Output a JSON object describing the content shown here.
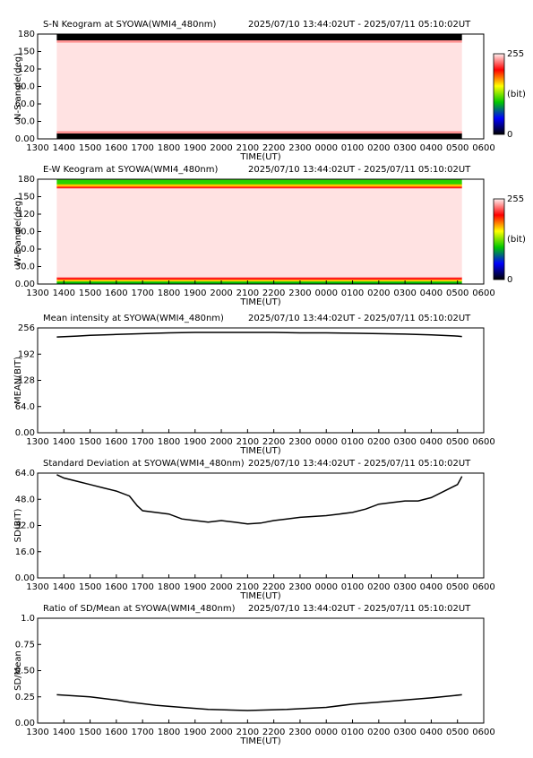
{
  "chart_data": [
    {
      "type": "keogram",
      "title": "S-N Keogram at SYOWA(WMI4_480nm)",
      "subtitle": "2025/07/10 13:44:02UT - 2025/07/11 05:10:02UT",
      "xlabel": "TIME(UT)",
      "ylabel": "N-S angle(deg)",
      "xbins": [
        13.73,
        29.17
      ],
      "ybins": [
        0,
        10,
        14,
        166,
        170,
        180
      ],
      "values": [
        0,
        235,
        252,
        235,
        0
      ],
      "clim": [
        0,
        255
      ],
      "cticks": [
        0,
        255
      ],
      "clabel": "(bit)",
      "xlim": [
        13,
        30
      ],
      "xticks": [
        {
          "value": 13,
          "label": "1300"
        },
        {
          "value": 14,
          "label": "1400"
        },
        {
          "value": 15,
          "label": "1500"
        },
        {
          "value": 16,
          "label": "1600"
        },
        {
          "value": 17,
          "label": "1700"
        },
        {
          "value": 18,
          "label": "1800"
        },
        {
          "value": 19,
          "label": "1900"
        },
        {
          "value": 20,
          "label": "2000"
        },
        {
          "value": 21,
          "label": "2100"
        },
        {
          "value": 22,
          "label": "2200"
        },
        {
          "value": 23,
          "label": "2300"
        },
        {
          "value": 24,
          "label": "0000"
        },
        {
          "value": 25,
          "label": "0100"
        },
        {
          "value": 26,
          "label": "0200"
        },
        {
          "value": 27,
          "label": "0300"
        },
        {
          "value": 28,
          "label": "0400"
        },
        {
          "value": 29,
          "label": "0500"
        },
        {
          "value": 30,
          "label": "0600"
        }
      ],
      "ylim": [
        0,
        180
      ],
      "yticks": [
        {
          "value": 0,
          "label": "0.00"
        },
        {
          "value": 30,
          "label": "30.0"
        },
        {
          "value": 60,
          "label": "60.0"
        },
        {
          "value": 90,
          "label": "90.0"
        },
        120,
        150,
        180
      ]
    },
    {
      "type": "keogram",
      "title": "E-W Keogram at SYOWA(WMI4_480nm)",
      "subtitle": "2025/07/10 13:44:02UT - 2025/07/11 05:10:02UT",
      "xlabel": "TIME(UT)",
      "ylabel": "W-E angle(deg)",
      "xbins": [
        13.73,
        29.17
      ],
      "ybins": [
        0,
        5,
        8,
        12,
        165,
        168,
        172,
        180
      ],
      "values": [
        100,
        160,
        210,
        252,
        210,
        165,
        110
      ],
      "clim": [
        0,
        255
      ],
      "cticks": [
        0,
        255
      ],
      "clabel": "(bit)",
      "xlim": [
        13,
        30
      ],
      "xticks": [
        {
          "value": 13,
          "label": "1300"
        },
        {
          "value": 14,
          "label": "1400"
        },
        {
          "value": 15,
          "label": "1500"
        },
        {
          "value": 16,
          "label": "1600"
        },
        {
          "value": 17,
          "label": "1700"
        },
        {
          "value": 18,
          "label": "1800"
        },
        {
          "value": 19,
          "label": "1900"
        },
        {
          "value": 20,
          "label": "2000"
        },
        {
          "value": 21,
          "label": "2100"
        },
        {
          "value": 22,
          "label": "2200"
        },
        {
          "value": 23,
          "label": "2300"
        },
        {
          "value": 24,
          "label": "0000"
        },
        {
          "value": 25,
          "label": "0100"
        },
        {
          "value": 26,
          "label": "0200"
        },
        {
          "value": 27,
          "label": "0300"
        },
        {
          "value": 28,
          "label": "0400"
        },
        {
          "value": 29,
          "label": "0500"
        },
        {
          "value": 30,
          "label": "0600"
        }
      ],
      "ylim": [
        0,
        180
      ],
      "yticks": [
        {
          "value": 0,
          "label": "0.00"
        },
        {
          "value": 30,
          "label": "30.0"
        },
        {
          "value": 60,
          "label": "60.0"
        },
        {
          "value": 90,
          "label": "90.0"
        },
        120,
        150,
        180
      ]
    },
    {
      "type": "line",
      "title": "Mean intensity at SYOWA(WMI4_480nm)",
      "subtitle": "2025/07/10 13:44:02UT - 2025/07/11 05:10:02UT",
      "xlabel": "TIME(UT)",
      "ylabel": "MEAN(BIT)",
      "color": "#000000",
      "x": [
        13.73,
        14.5,
        15,
        16,
        17,
        18,
        19,
        20,
        21,
        22,
        23,
        24,
        25,
        26,
        27,
        28,
        29,
        29.17
      ],
      "values": [
        234,
        236,
        238,
        240,
        242,
        244,
        245,
        245,
        245,
        245,
        244,
        244,
        243,
        242,
        241,
        239,
        236,
        235
      ],
      "xlim": [
        13,
        30
      ],
      "xticks": [
        {
          "value": 13,
          "label": "1300"
        },
        {
          "value": 14,
          "label": "1400"
        },
        {
          "value": 15,
          "label": "1500"
        },
        {
          "value": 16,
          "label": "1600"
        },
        {
          "value": 17,
          "label": "1700"
        },
        {
          "value": 18,
          "label": "1800"
        },
        {
          "value": 19,
          "label": "1900"
        },
        {
          "value": 20,
          "label": "2000"
        },
        {
          "value": 21,
          "label": "2100"
        },
        {
          "value": 22,
          "label": "2200"
        },
        {
          "value": 23,
          "label": "2300"
        },
        {
          "value": 24,
          "label": "0000"
        },
        {
          "value": 25,
          "label": "0100"
        },
        {
          "value": 26,
          "label": "0200"
        },
        {
          "value": 27,
          "label": "0300"
        },
        {
          "value": 28,
          "label": "0400"
        },
        {
          "value": 29,
          "label": "0500"
        },
        {
          "value": 30,
          "label": "0600"
        }
      ],
      "ylim": [
        0,
        256
      ],
      "yticks": [
        {
          "value": 0,
          "label": "0.00"
        },
        {
          "value": 64,
          "label": "64.0"
        },
        128,
        192,
        256
      ]
    },
    {
      "type": "line",
      "title": "Standard Deviation at SYOWA(WMI4_480nm)",
      "subtitle": "2025/07/10 13:44:02UT - 2025/07/11 05:10:02UT",
      "xlabel": "TIME(UT)",
      "ylabel": "SD(BIT)",
      "color": "#000000",
      "x": [
        13.73,
        14,
        14.5,
        15,
        15.5,
        16,
        16.5,
        16.8,
        17,
        17.5,
        18,
        18.5,
        19,
        19.5,
        20,
        20.5,
        21,
        21.5,
        22,
        22.5,
        23,
        24,
        24.5,
        25,
        25.5,
        26,
        26.5,
        27,
        27.5,
        28,
        28.5,
        29,
        29.17
      ],
      "values": [
        63,
        61,
        59,
        57,
        55,
        53,
        50,
        44,
        41,
        40,
        39,
        36,
        35,
        34,
        35,
        34,
        33,
        33.5,
        35,
        36,
        37,
        38,
        39,
        40,
        42,
        45,
        46,
        47,
        47,
        49,
        53,
        57,
        62
      ],
      "xlim": [
        13,
        30
      ],
      "xticks": [
        {
          "value": 13,
          "label": "1300"
        },
        {
          "value": 14,
          "label": "1400"
        },
        {
          "value": 15,
          "label": "1500"
        },
        {
          "value": 16,
          "label": "1600"
        },
        {
          "value": 17,
          "label": "1700"
        },
        {
          "value": 18,
          "label": "1800"
        },
        {
          "value": 19,
          "label": "1900"
        },
        {
          "value": 20,
          "label": "2000"
        },
        {
          "value": 21,
          "label": "2100"
        },
        {
          "value": 22,
          "label": "2200"
        },
        {
          "value": 23,
          "label": "2300"
        },
        {
          "value": 24,
          "label": "0000"
        },
        {
          "value": 25,
          "label": "0100"
        },
        {
          "value": 26,
          "label": "0200"
        },
        {
          "value": 27,
          "label": "0300"
        },
        {
          "value": 28,
          "label": "0400"
        },
        {
          "value": 29,
          "label": "0500"
        },
        {
          "value": 30,
          "label": "0600"
        }
      ],
      "ylim": [
        0,
        64
      ],
      "yticks": [
        {
          "value": 0,
          "label": "0.00"
        },
        {
          "value": 16,
          "label": "16.0"
        },
        {
          "value": 32,
          "label": "32.0"
        },
        {
          "value": 48,
          "label": "48.0"
        },
        {
          "value": 64,
          "label": "64.0"
        }
      ]
    },
    {
      "type": "line",
      "title": "Ratio of SD/Mean at SYOWA(WMI4_480nm)",
      "subtitle": "2025/07/10 13:44:02UT - 2025/07/11 05:10:02UT",
      "xlabel": "TIME(UT)",
      "ylabel": "SD/Mean",
      "color": "#000000",
      "x": [
        13.73,
        15,
        16,
        16.5,
        17.5,
        18.5,
        19.5,
        21,
        22.5,
        24,
        25,
        26,
        27,
        28,
        29.17
      ],
      "values": [
        0.27,
        0.25,
        0.22,
        0.2,
        0.17,
        0.15,
        0.13,
        0.12,
        0.13,
        0.15,
        0.18,
        0.2,
        0.22,
        0.24,
        0.27
      ],
      "xlim": [
        13,
        30
      ],
      "xticks": [
        {
          "value": 13,
          "label": "1300"
        },
        {
          "value": 14,
          "label": "1400"
        },
        {
          "value": 15,
          "label": "1500"
        },
        {
          "value": 16,
          "label": "1600"
        },
        {
          "value": 17,
          "label": "1700"
        },
        {
          "value": 18,
          "label": "1800"
        },
        {
          "value": 19,
          "label": "1900"
        },
        {
          "value": 20,
          "label": "2000"
        },
        {
          "value": 21,
          "label": "2100"
        },
        {
          "value": 22,
          "label": "2200"
        },
        {
          "value": 23,
          "label": "2300"
        },
        {
          "value": 24,
          "label": "0000"
        },
        {
          "value": 25,
          "label": "0100"
        },
        {
          "value": 26,
          "label": "0200"
        },
        {
          "value": 27,
          "label": "0300"
        },
        {
          "value": 28,
          "label": "0400"
        },
        {
          "value": 29,
          "label": "0500"
        },
        {
          "value": 30,
          "label": "0600"
        }
      ],
      "ylim": [
        0,
        1
      ],
      "yticks": [
        {
          "value": 0,
          "label": "0.00"
        },
        0.25,
        {
          "value": 0.5,
          "label": "0.50"
        },
        0.75,
        {
          "value": 1,
          "label": "1.0"
        }
      ]
    }
  ]
}
